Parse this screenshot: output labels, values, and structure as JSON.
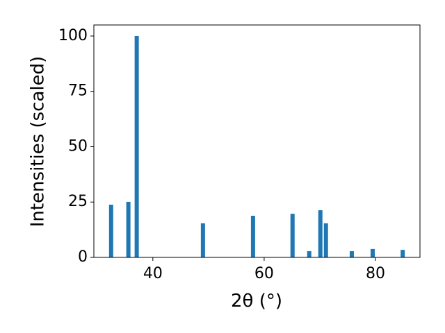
{
  "chart_data": {
    "type": "bar",
    "xlabel": "2θ (°)",
    "ylabel": "Intensities (scaled)",
    "x": [
      32.5,
      35.6,
      37.1,
      49.0,
      58.0,
      65.1,
      68.1,
      70.1,
      71.1,
      75.75,
      79.5,
      84.9
    ],
    "values": [
      23.8,
      25.1,
      100,
      15.4,
      18.8,
      19.7,
      2.8,
      21.3,
      15.4,
      2.8,
      3.8,
      3.4
    ],
    "color": "#1f77b4",
    "xlim": [
      29.4,
      88
    ],
    "xticks": [
      40,
      60,
      80
    ],
    "ylim": [
      0,
      105
    ],
    "yticks": [
      0,
      25,
      50,
      75,
      100
    ]
  }
}
